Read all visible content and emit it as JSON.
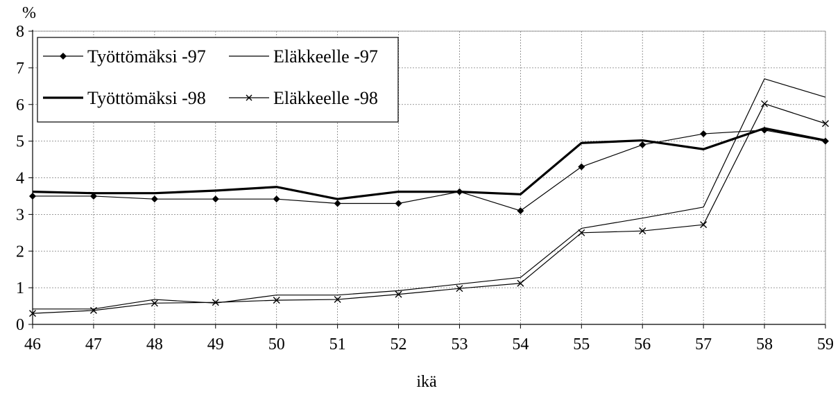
{
  "chart_data": {
    "type": "line",
    "title": "",
    "xlabel": "ikä",
    "ylabel": "%",
    "x": [
      46,
      47,
      48,
      49,
      50,
      51,
      52,
      53,
      54,
      55,
      56,
      57,
      58,
      59
    ],
    "xlim": [
      46,
      59
    ],
    "ylim": [
      0,
      8
    ],
    "yticks": [
      "0",
      "1",
      "2",
      "3",
      "4",
      "5",
      "6",
      "7",
      "8"
    ],
    "xticks": [
      "46",
      "47",
      "48",
      "49",
      "50",
      "51",
      "52",
      "53",
      "54",
      "55",
      "56",
      "57",
      "58",
      "59"
    ],
    "grid": true,
    "legend_position": "top-left",
    "series": [
      {
        "name": "Työttömäksi -97",
        "style": "thin-diamond",
        "color": "#000000",
        "values": [
          3.5,
          3.5,
          3.42,
          3.42,
          3.42,
          3.3,
          3.3,
          3.62,
          3.1,
          4.3,
          4.9,
          5.2,
          5.3,
          5.0
        ]
      },
      {
        "name": "Eläkkeelle -97",
        "style": "thin",
        "color": "#000000",
        "values": [
          0.42,
          0.42,
          0.68,
          0.58,
          0.8,
          0.8,
          0.92,
          1.1,
          1.28,
          2.62,
          2.9,
          3.2,
          6.7,
          6.2
        ]
      },
      {
        "name": "Työttömäksi -98",
        "style": "thick",
        "color": "#000000",
        "values": [
          3.62,
          3.58,
          3.58,
          3.65,
          3.75,
          3.42,
          3.62,
          3.62,
          3.55,
          4.95,
          5.02,
          4.78,
          5.35,
          5.02
        ]
      },
      {
        "name": "Eläkkeelle -98",
        "style": "thin-cross",
        "color": "#000000",
        "values": [
          0.3,
          0.38,
          0.58,
          0.6,
          0.66,
          0.68,
          0.82,
          0.98,
          1.12,
          2.5,
          2.55,
          2.72,
          6.02,
          5.48
        ]
      }
    ]
  }
}
